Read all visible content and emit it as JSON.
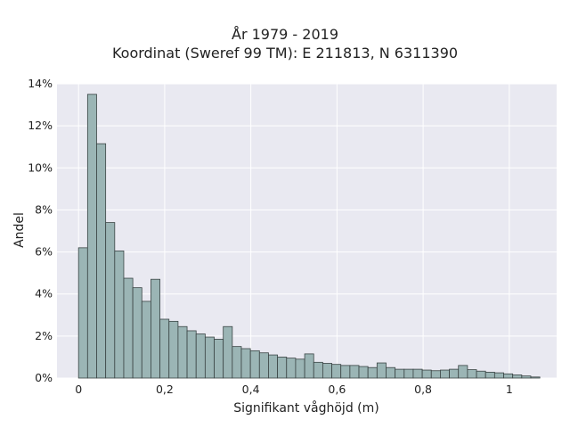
{
  "chart_data": {
    "type": "bar",
    "title": "År 1979 - 2019",
    "subtitle": "Koordinat (Sweref 99 TM): E 211813, N 6311390",
    "xlabel": "Signifikant våghöjd (m)",
    "ylabel": "Andel",
    "xlim": [
      -0.05,
      1.11
    ],
    "ylim": [
      0,
      14
    ],
    "x_ticks": [
      {
        "value": 0,
        "label": "0"
      },
      {
        "value": 0.2,
        "label": "0,2"
      },
      {
        "value": 0.4,
        "label": "0,4"
      },
      {
        "value": 0.6,
        "label": "0,6"
      },
      {
        "value": 0.8,
        "label": "0,8"
      },
      {
        "value": 1.0,
        "label": "1"
      }
    ],
    "y_ticks": [
      {
        "value": 0,
        "label": "0%"
      },
      {
        "value": 2,
        "label": "2%"
      },
      {
        "value": 4,
        "label": "4%"
      },
      {
        "value": 6,
        "label": "6%"
      },
      {
        "value": 8,
        "label": "8%"
      },
      {
        "value": 10,
        "label": "10%"
      },
      {
        "value": 12,
        "label": "12%"
      },
      {
        "value": 14,
        "label": "14%"
      }
    ],
    "grid": true,
    "bin_start": 0.0,
    "bin_width": 0.021,
    "values": [
      6.2,
      13.5,
      11.15,
      7.4,
      6.05,
      4.75,
      4.3,
      3.65,
      4.7,
      2.8,
      2.7,
      2.45,
      2.25,
      2.1,
      1.95,
      1.85,
      2.45,
      1.5,
      1.4,
      1.3,
      1.2,
      1.1,
      1.0,
      0.95,
      0.9,
      1.15,
      0.75,
      0.7,
      0.65,
      0.6,
      0.6,
      0.55,
      0.5,
      0.72,
      0.5,
      0.42,
      0.42,
      0.42,
      0.38,
      0.35,
      0.38,
      0.42,
      0.6,
      0.4,
      0.33,
      0.28,
      0.25,
      0.2,
      0.15,
      0.1,
      0.05
    ]
  },
  "colors": {
    "plot_background": "#e9e9f1",
    "bar_fill": "#9bb5b5",
    "bar_stroke": "#3a4444",
    "grid": "#ffffff"
  }
}
